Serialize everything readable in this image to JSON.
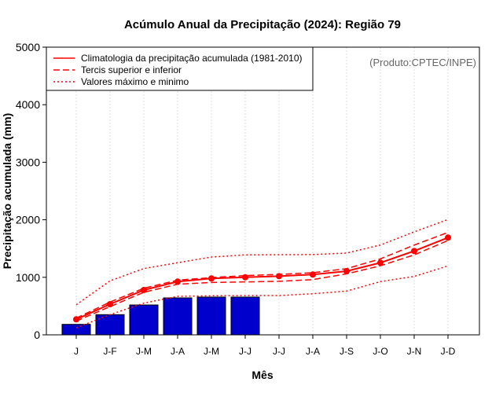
{
  "chart_data": {
    "type": "bar",
    "title": "Acúmulo Anual da Precipitação (2024): Região 79",
    "xlabel": "Mês",
    "ylabel": "Precipitação acumulada (mm)",
    "ylim": [
      0,
      5000
    ],
    "yticks": [
      0,
      1000,
      2000,
      3000,
      4000,
      5000
    ],
    "categories": [
      "J",
      "J-F",
      "J-M",
      "J-A",
      "J-M",
      "J-J",
      "J-J",
      "J-A",
      "J-S",
      "J-O",
      "J-N",
      "J-D"
    ],
    "grid": "vertical dotted",
    "credit": "(Produto:CPTEC/INPE)",
    "legend": {
      "placement": "top-left",
      "entries": [
        "Climatologia da precipitação acumulada (1981-2010)",
        "Tercis superior e inferior",
        "Valores máximo e minimo"
      ]
    },
    "bars": {
      "name": "2024",
      "color": "#0000CC",
      "values": [
        182,
        351,
        519,
        642,
        656,
        656
      ]
    },
    "series": [
      {
        "name": "Climatologia",
        "style": "solid",
        "markers": true,
        "color": "#FF0000",
        "values": [
          269,
          533,
          779,
          925,
          980,
          1001,
          1020,
          1048,
          1107,
          1253,
          1457,
          1690
        ]
      },
      {
        "name": "Tercil superior",
        "style": "dashed",
        "color": "#FF0000",
        "values": [
          290,
          570,
          810,
          950,
          995,
          1030,
          1050,
          1080,
          1150,
          1320,
          1560,
          1780
        ]
      },
      {
        "name": "Tercil inferior",
        "style": "dashed",
        "color": "#FF0000",
        "values": [
          240,
          490,
          740,
          880,
          910,
          920,
          930,
          960,
          1060,
          1200,
          1390,
          1640
        ]
      },
      {
        "name": "Máximo",
        "style": "dotted",
        "color": "#FF0000",
        "values": [
          523,
          938,
          1152,
          1253,
          1352,
          1389,
          1393,
          1395,
          1421,
          1561,
          1790,
          2004
        ]
      },
      {
        "name": "Mínimo",
        "style": "dotted",
        "color": "#FF0000",
        "values": [
          123,
          351,
          551,
          669,
          679,
          683,
          683,
          714,
          760,
          925,
          1015,
          1198
        ]
      }
    ]
  }
}
